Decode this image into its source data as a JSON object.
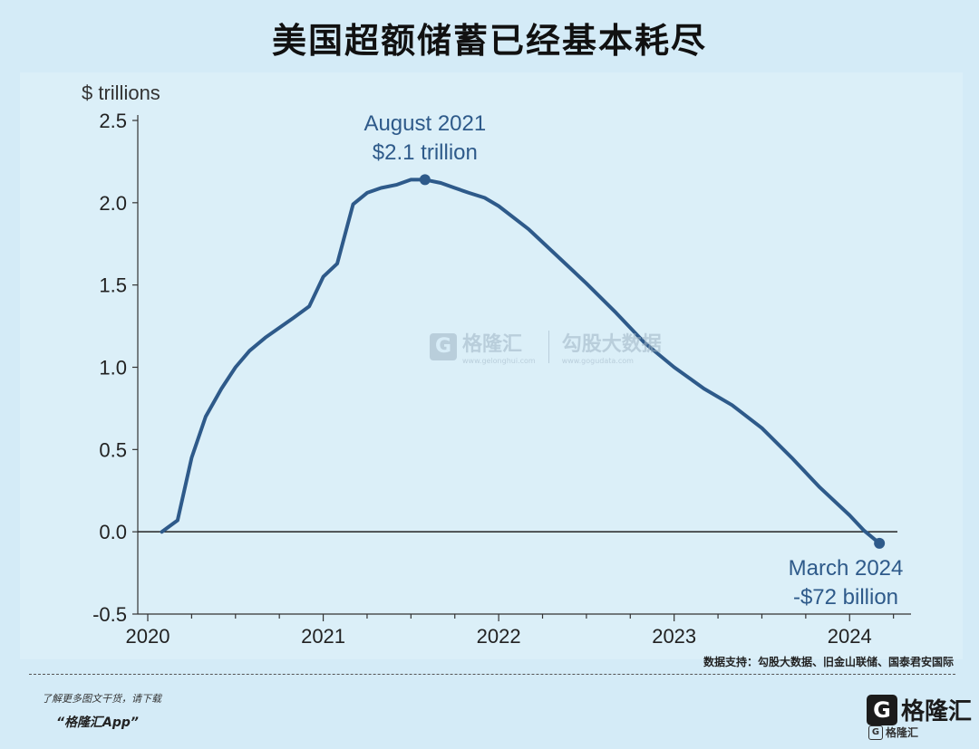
{
  "title": "美国超额储蓄已经基本耗尽",
  "chart_data": {
    "type": "line",
    "ylabel": "$ trillions",
    "xlabel": "",
    "ylim": [
      -0.5,
      2.5
    ],
    "xlim": [
      2020.0,
      2024.35
    ],
    "y_ticks": [
      "2.5",
      "2.0",
      "1.5",
      "1.0",
      "0.5",
      "0.0",
      "-0.5"
    ],
    "x_ticks": [
      "2020",
      "2021",
      "2022",
      "2023",
      "2024"
    ],
    "series": [
      {
        "name": "",
        "x": [
          2020.08,
          2020.17,
          2020.25,
          2020.33,
          2020.42,
          2020.5,
          2020.58,
          2020.67,
          2020.75,
          2020.83,
          2020.92,
          2021.0,
          2021.08,
          2021.17,
          2021.25,
          2021.33,
          2021.42,
          2021.5,
          2021.58,
          2021.67,
          2021.75,
          2021.83,
          2021.92,
          2022.0,
          2022.17,
          2022.33,
          2022.5,
          2022.67,
          2022.83,
          2023.0,
          2023.17,
          2023.33,
          2023.5,
          2023.67,
          2023.83,
          2024.0,
          2024.08,
          2024.17
        ],
        "values": [
          0.0,
          0.07,
          0.45,
          0.7,
          0.87,
          1.0,
          1.1,
          1.18,
          1.24,
          1.3,
          1.37,
          1.55,
          1.63,
          1.99,
          2.06,
          2.09,
          2.11,
          2.14,
          2.14,
          2.12,
          2.09,
          2.06,
          2.03,
          1.98,
          1.84,
          1.68,
          1.51,
          1.33,
          1.15,
          1.0,
          0.87,
          0.77,
          0.63,
          0.45,
          0.27,
          0.1,
          0.01,
          -0.07
        ]
      }
    ],
    "annotations": [
      {
        "label_line1": "August 2021",
        "label_line2": "$2.1 trillion",
        "x": 2021.58,
        "y": 2.14
      },
      {
        "label_line1": "March 2024",
        "label_line2": "-$72 billion",
        "x": 2024.17,
        "y": -0.07
      }
    ],
    "zero_line": true,
    "colors": {
      "line": "#2e5a8a",
      "plot_bg": "#dbeff8",
      "page_bg": "#d4ebf7",
      "annotation_text": "#2e5a8a"
    }
  },
  "watermark": {
    "logo": "G",
    "name": "格隆汇",
    "sub1": "www.gelonghui.com",
    "name2": "勾股大数据",
    "sub2": "www.gogudata.com"
  },
  "source_text": "数据支持：勾股大数据、旧金山联储、国泰君安国际",
  "footer": {
    "line1": "了解更多图文干货，请下载",
    "line2": "“格隆汇App”"
  },
  "brand": {
    "logo": "G",
    "name": "格隆汇",
    "sub_name": "格隆汇"
  }
}
